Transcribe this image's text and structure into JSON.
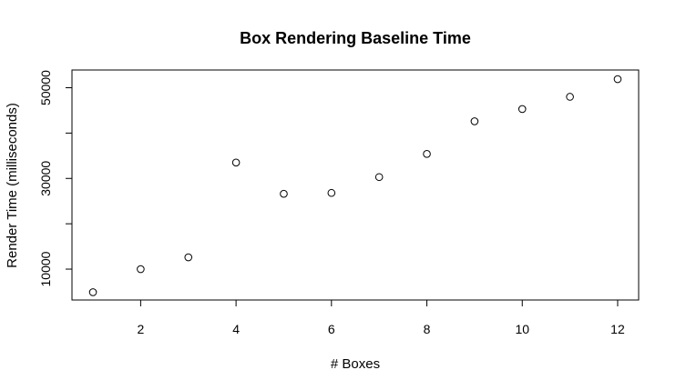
{
  "chart_data": {
    "type": "scatter",
    "title": "Box Rendering Baseline Time",
    "xlabel": "# Boxes",
    "ylabel": "Render Time (milliseconds)",
    "x": [
      1,
      2,
      3,
      4,
      5,
      6,
      7,
      8,
      9,
      10,
      11,
      12
    ],
    "y": [
      4900,
      10000,
      12600,
      33500,
      26600,
      26800,
      30300,
      35400,
      42600,
      45300,
      48000,
      51900
    ],
    "xlim": [
      0.56,
      12.44
    ],
    "ylim": [
      3190,
      53910
    ],
    "xticks": [
      2,
      4,
      6,
      8,
      10,
      12
    ],
    "yticks": [
      10000,
      30000,
      50000
    ],
    "yticks_minor": [
      20000,
      40000
    ],
    "marker": "open-circle",
    "grid": false,
    "legend": "none"
  }
}
